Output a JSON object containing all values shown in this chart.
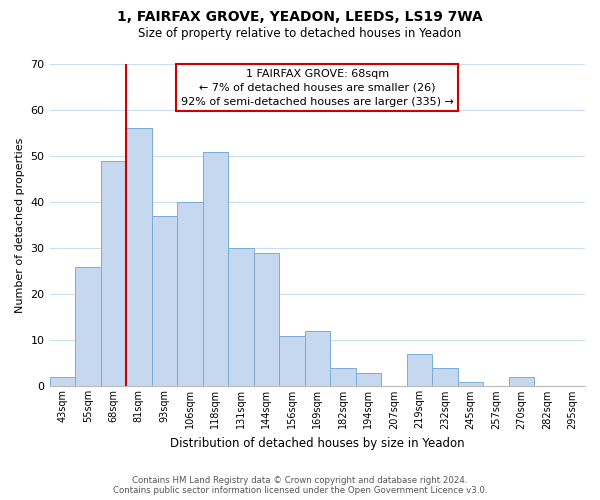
{
  "title_line1": "1, FAIRFAX GROVE, YEADON, LEEDS, LS19 7WA",
  "title_line2": "Size of property relative to detached houses in Yeadon",
  "xlabel": "Distribution of detached houses by size in Yeadon",
  "ylabel": "Number of detached properties",
  "bar_labels": [
    "43sqm",
    "55sqm",
    "68sqm",
    "81sqm",
    "93sqm",
    "106sqm",
    "118sqm",
    "131sqm",
    "144sqm",
    "156sqm",
    "169sqm",
    "182sqm",
    "194sqm",
    "207sqm",
    "219sqm",
    "232sqm",
    "245sqm",
    "257sqm",
    "270sqm",
    "282sqm",
    "295sqm"
  ],
  "bar_values": [
    2,
    26,
    49,
    56,
    37,
    40,
    51,
    30,
    29,
    11,
    12,
    4,
    3,
    0,
    7,
    4,
    1,
    0,
    2,
    0,
    0
  ],
  "bar_color": "#c5d8ef",
  "bar_edge_color": "#7aadd4",
  "highlight_index": 2,
  "highlight_line_color": "#cc0000",
  "ylim": [
    0,
    70
  ],
  "yticks": [
    0,
    10,
    20,
    30,
    40,
    50,
    60,
    70
  ],
  "annotation_line1": "1 FAIRFAX GROVE: 68sqm",
  "annotation_line2": "← 7% of detached houses are smaller (26)",
  "annotation_line3": "92% of semi-detached houses are larger (335) →",
  "annotation_box_color": "#ffffff",
  "annotation_box_edge_color": "#cc0000",
  "footer_line1": "Contains HM Land Registry data © Crown copyright and database right 2024.",
  "footer_line2": "Contains public sector information licensed under the Open Government Licence v3.0.",
  "background_color": "#ffffff",
  "grid_color": "#c8ddf0"
}
